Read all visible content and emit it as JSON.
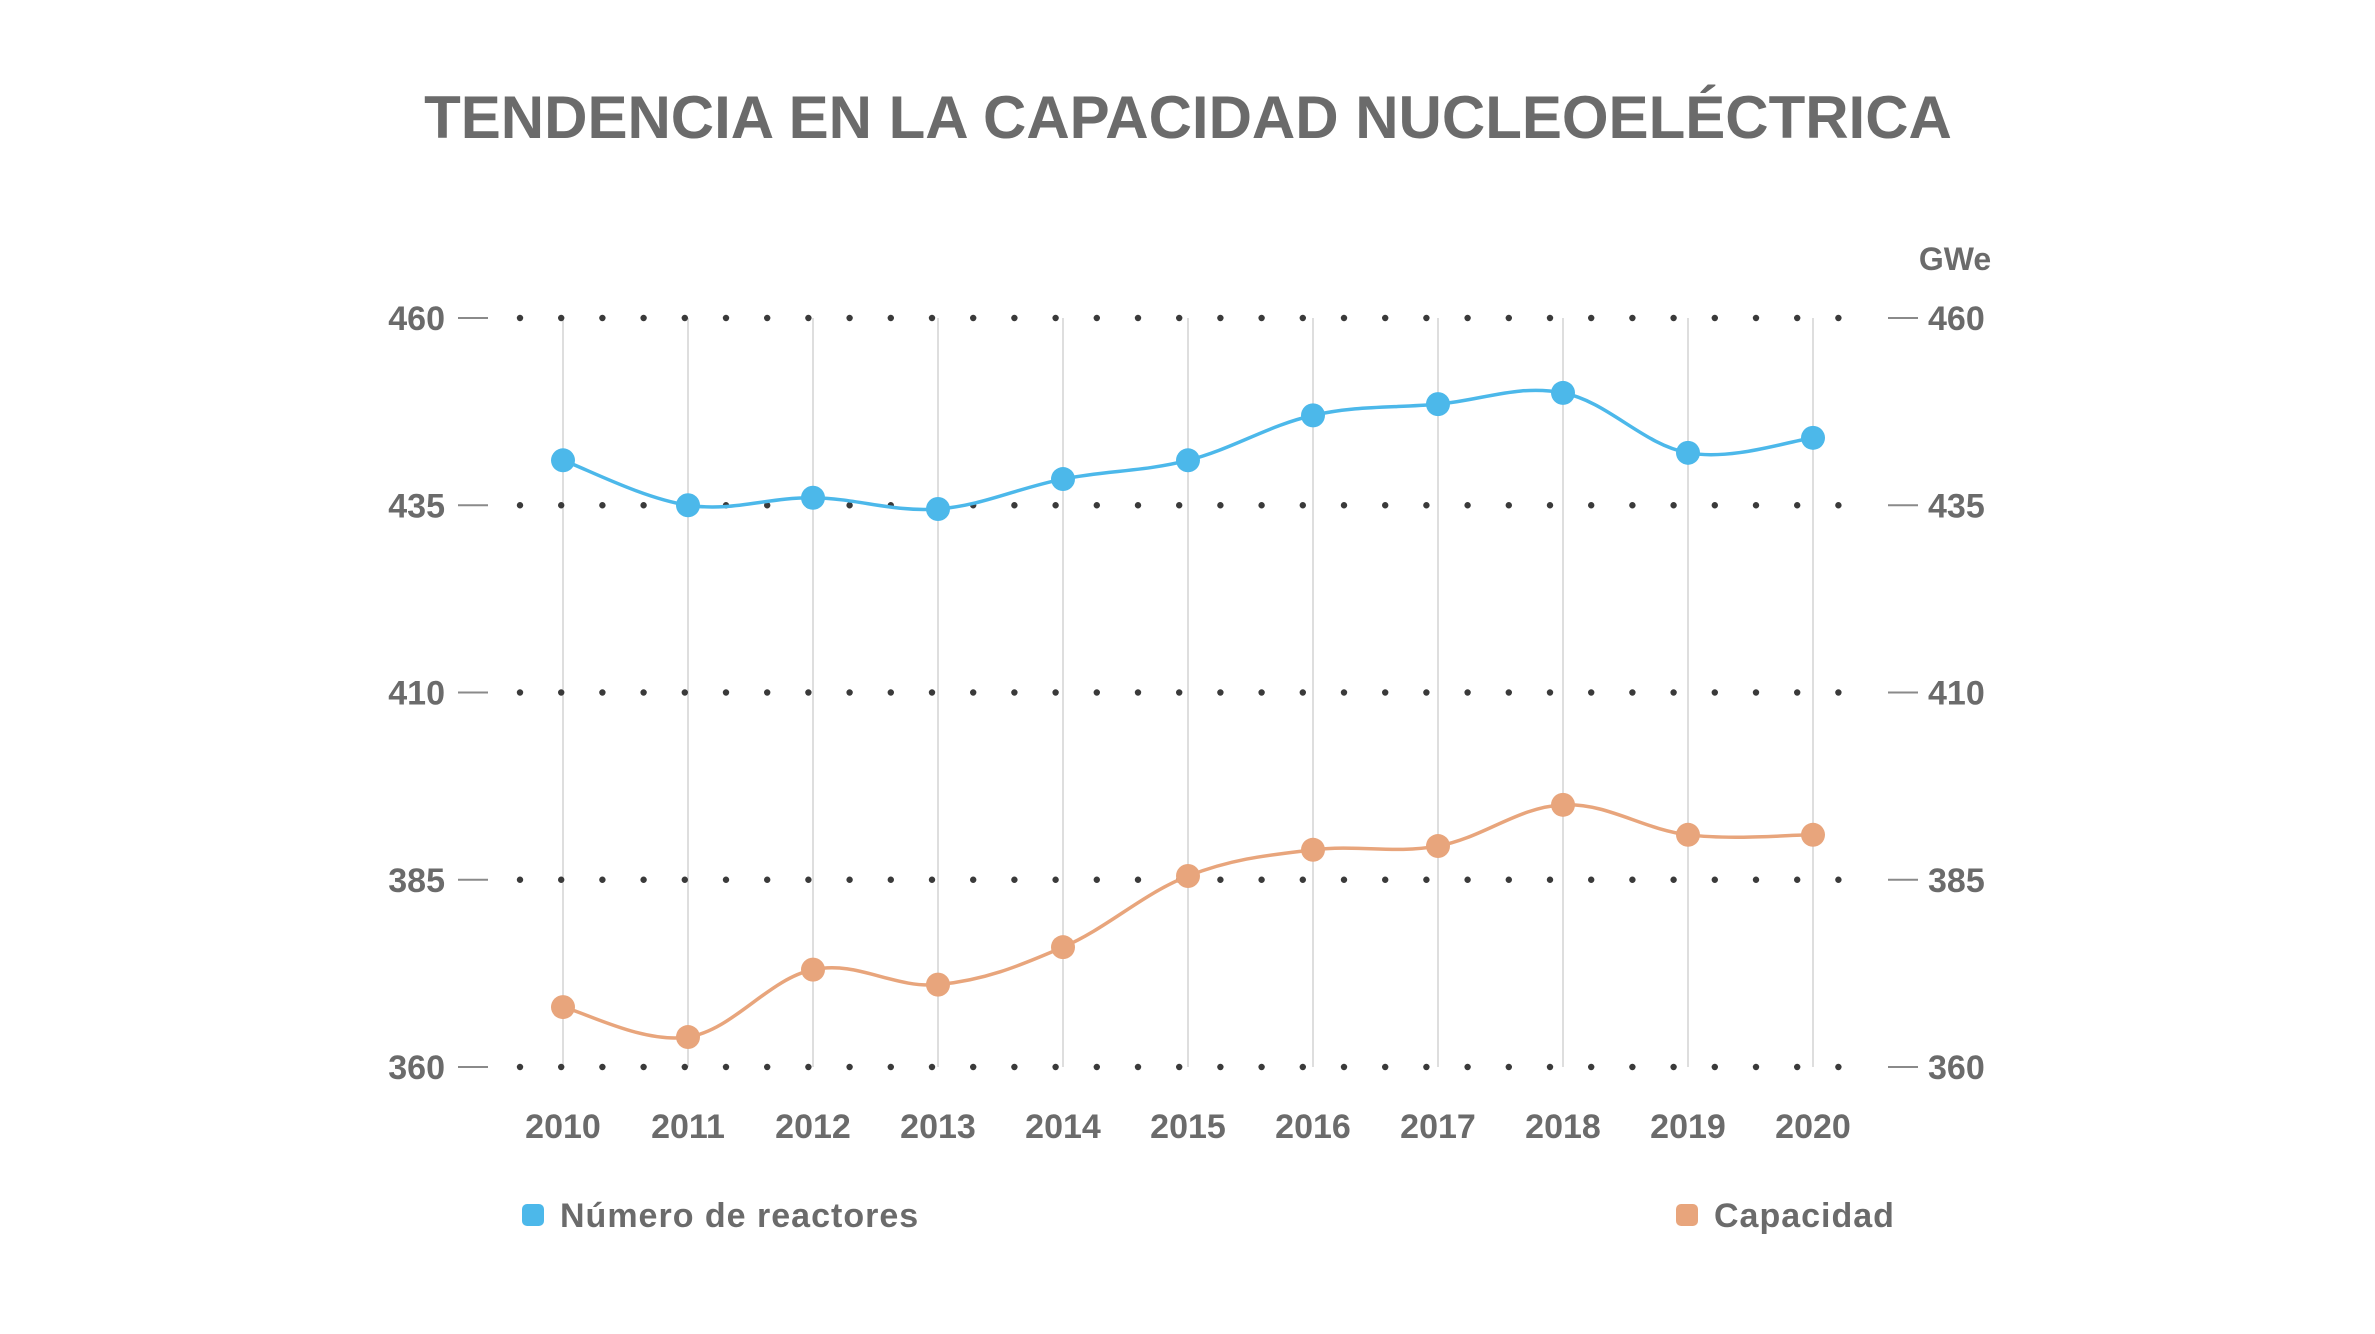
{
  "colors": {
    "reactors": "#4cb8ea",
    "capacity": "#e8a57c",
    "text": "#6b6b6b",
    "grid_dots": "#3a3a3a",
    "vertical_grid": "#d4d4d4",
    "tick_line": "#8a8a8a"
  },
  "chart_data": {
    "type": "line",
    "title": "TENDENCIA EN LA CAPACIDAD NUCLEOELÉCTRICA",
    "right_axis_unit": "GWe",
    "x": [
      "2010",
      "2011",
      "2012",
      "2013",
      "2014",
      "2015",
      "2016",
      "2017",
      "2018",
      "2019",
      "2020"
    ],
    "ylim": [
      360,
      460
    ],
    "yticks": [
      "360",
      "385",
      "410",
      "435",
      "460"
    ],
    "series": [
      {
        "name": "Número de reactores",
        "color": "#4cb8ea",
        "values": [
          441,
          435,
          436,
          434.5,
          438.5,
          441,
          447,
          448.5,
          450,
          442,
          444
        ]
      },
      {
        "name": "Capacidad",
        "color": "#e8a57c",
        "values": [
          368,
          364,
          373,
          371,
          376,
          385.5,
          389,
          389.5,
          395,
          391,
          391
        ]
      }
    ],
    "grid": "dotted-horizontal",
    "legend": "bottom"
  }
}
